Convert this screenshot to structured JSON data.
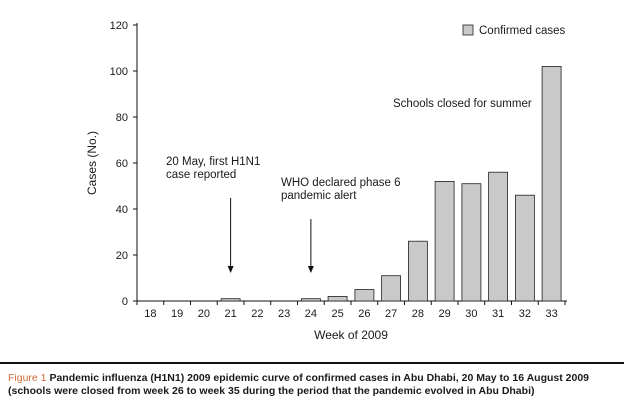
{
  "chart_data": {
    "type": "bar",
    "categories": [
      "18",
      "19",
      "20",
      "21",
      "22",
      "23",
      "24",
      "25",
      "26",
      "27",
      "28",
      "29",
      "30",
      "31",
      "32",
      "33"
    ],
    "series": [
      {
        "name": "Confirmed cases",
        "values": [
          0,
          0,
          0,
          1,
          0,
          0,
          1,
          2,
          5,
          11,
          26,
          52,
          51,
          56,
          46,
          102
        ],
        "color": "#c9c9c9"
      }
    ],
    "xlabel": "Week of 2009",
    "ylabel": "Cases (No.)",
    "ylim": [
      0,
      120
    ],
    "yticks": [
      0,
      20,
      40,
      60,
      80,
      100,
      120
    ],
    "grid": false,
    "legend": "top-right",
    "annotations": [
      {
        "id": "first",
        "lines": [
          "20 May, first H1N1",
          "case reported"
        ],
        "arrow_week": "21"
      },
      {
        "id": "who",
        "lines": [
          "WHO declared phase 6",
          "pandemic alert"
        ],
        "arrow_week": "24"
      },
      {
        "id": "schools",
        "lines": [
          "Schools closed for summer"
        ],
        "arrow_week": null
      }
    ]
  },
  "caption": {
    "label": "Figure 1",
    "line1": "Pandemic influenza (H1N1) 2009 epidemic curve of confirmed cases in Abu Dhabi, 20 May to 16 August 2009",
    "line2": "(schools were closed from week 26 to week 35 during the period that the pandemic evolved in Abu Dhabi)"
  }
}
